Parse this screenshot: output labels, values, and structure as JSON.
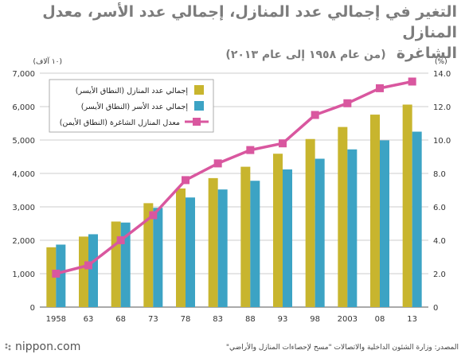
{
  "title_line1": "التغير في إجمالي عدد المنازل، إجمالي عدد الأسر، معدل المنازل",
  "title_line2": "الشاغرة",
  "title_sub": "(من عام ١٩٥٨ إلى عام ٢٠١٣)",
  "source": "المصدر: وزارة الشئون الداخلية والاتصالات \"مسح لإحصاءات المنازل والأراضي\"",
  "brand": "nippon.com",
  "colors": {
    "houses": "#c8b52e",
    "households": "#3ca3c4",
    "vacancy": "#d9579f",
    "grid": "#bdbdbd",
    "axis": "#555555"
  },
  "chart_data": {
    "type": "bar",
    "categories": [
      "1958",
      "63",
      "68",
      "73",
      "78",
      "83",
      "88",
      "93",
      "98",
      "2003",
      "08",
      "13"
    ],
    "series": [
      {
        "name": "إجمالي عدد المنازل (النطاق الأيسر)",
        "type": "bar",
        "axis": "left",
        "values": [
          1790,
          2110,
          2560,
          3110,
          3550,
          3860,
          4200,
          4590,
          5030,
          5390,
          5760,
          6060
        ]
      },
      {
        "name": "إجمالي عدد الأسر (النطاق الأيسر)",
        "type": "bar",
        "axis": "left",
        "values": [
          1870,
          2180,
          2530,
          2970,
          3280,
          3520,
          3780,
          4120,
          4440,
          4720,
          4990,
          5250
        ]
      },
      {
        "name": "معدل المنازل الشاغرة (النطاق الأيمن)",
        "type": "line",
        "axis": "right",
        "values": [
          2.0,
          2.5,
          4.0,
          5.5,
          7.6,
          8.6,
          9.4,
          9.8,
          11.5,
          12.2,
          13.1,
          13.5
        ]
      }
    ],
    "left_axis": {
      "unit": "(١٠ آلاف)",
      "ylim": [
        0,
        7000
      ],
      "ticks": [
        "0",
        "1,000",
        "2,000",
        "3,000",
        "4,000",
        "5,000",
        "6,000",
        "7,000"
      ]
    },
    "right_axis": {
      "unit": "(%)",
      "ylim": [
        0,
        14
      ],
      "ticks": [
        "0",
        "2.0",
        "4.0",
        "6.0",
        "8.0",
        "10.0",
        "12.0",
        "14.0"
      ]
    },
    "grid": true,
    "legend_position": "top-left"
  }
}
